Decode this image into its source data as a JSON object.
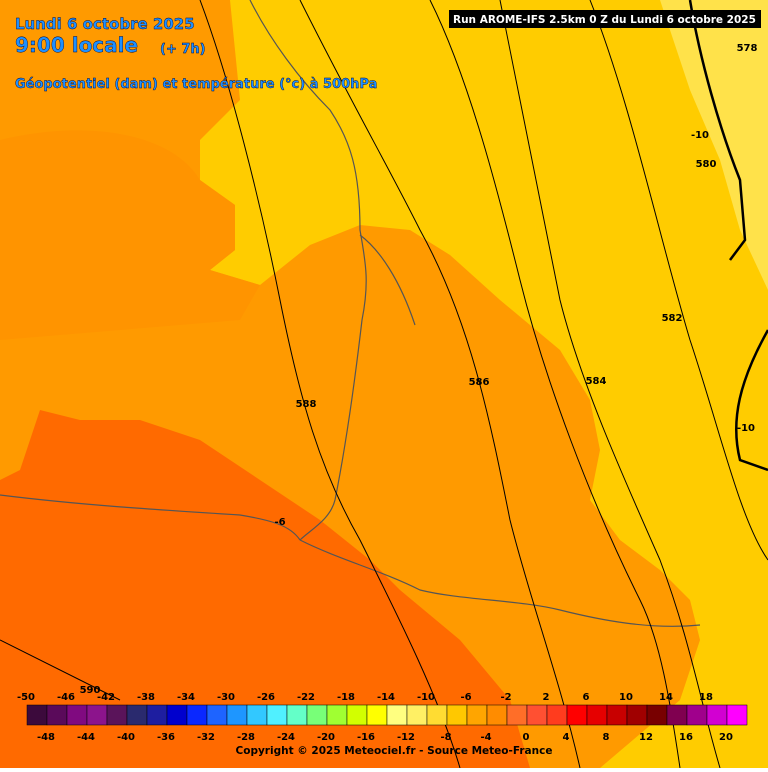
{
  "header": {
    "date": "Lundi 6 octobre 2025",
    "time": "9:00 locale",
    "offset": "(+ 7h)",
    "field": "Géopotentiel (dam) et température (°c) à 500hPa",
    "run": "Run AROME-IFS 2.5km 0 Z du Lundi 6 octobre 2025"
  },
  "contours": [
    {
      "label": 578
    },
    {
      "label": -10
    },
    {
      "label": 580
    },
    {
      "label": 582
    },
    {
      "label": 584
    },
    {
      "label": 586
    },
    {
      "label": 588
    },
    {
      "label": -6
    },
    {
      "label": -10
    },
    {
      "label": 590
    }
  ],
  "legend": {
    "top": [
      -50,
      -46,
      -42,
      -38,
      -34,
      -30,
      -26,
      -22,
      -18,
      -14,
      -10,
      -6,
      -2,
      2,
      6,
      10,
      14,
      18
    ],
    "bottom": [
      -48,
      -44,
      -40,
      -36,
      -32,
      -28,
      -24,
      -20,
      -16,
      -12,
      -8,
      -4,
      0,
      4,
      8,
      12,
      16,
      20
    ]
  },
  "footer": {
    "copyright": "Copyright © 2025 Meteociel.fr - Source Meteo-France"
  }
}
